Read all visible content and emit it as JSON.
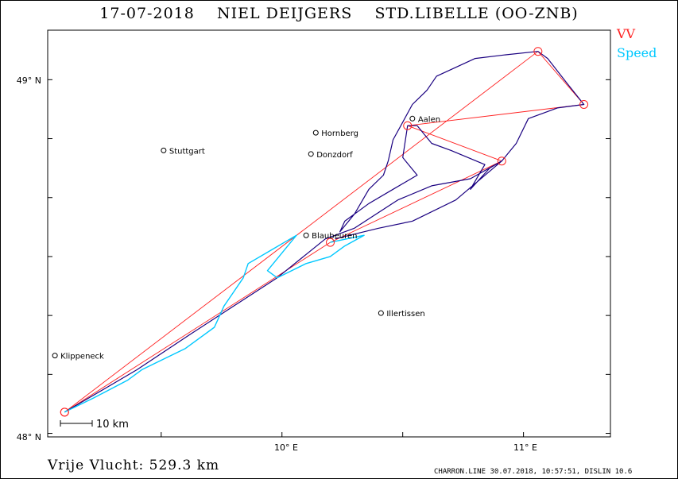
{
  "header": {
    "date": "17-07-2018",
    "pilot": "NIEL DEIJGERS",
    "glider": "STD.LIBELLE (OO-ZNB)"
  },
  "legend": {
    "vv": {
      "label": "VV",
      "color": "#ff2020"
    },
    "speed": {
      "label": "Speed",
      "color": "#00c8ff"
    }
  },
  "colors": {
    "track": "#1a0080",
    "task": "#ff2020",
    "speed": "#00c8ff"
  },
  "axes": {
    "lon_range": [
      9.03,
      11.36
    ],
    "lat_range": [
      47.99,
      49.14
    ],
    "lat_ticks": [
      {
        "value": 49.0,
        "label": "49° N"
      },
      {
        "value": 48.0,
        "label": "48° N"
      }
    ],
    "lon_ticks": [
      {
        "value": 10.0,
        "label": "10° E"
      },
      {
        "value": 11.0,
        "label": "11° E"
      }
    ]
  },
  "scale_bar": {
    "label": "10 km"
  },
  "towns": [
    {
      "name": "Stuttgart",
      "lon": 9.51,
      "lat": 48.8
    },
    {
      "name": "Hornberg",
      "lon": 10.14,
      "lat": 48.85
    },
    {
      "name": "Donzdorf",
      "lon": 10.12,
      "lat": 48.79
    },
    {
      "name": "Aalen",
      "lon": 10.54,
      "lat": 48.89
    },
    {
      "name": "Blaubeuren",
      "lon": 10.1,
      "lat": 48.56
    },
    {
      "name": "Illertissen",
      "lon": 10.41,
      "lat": 48.34
    },
    {
      "name": "Klippeneck",
      "lon": 9.06,
      "lat": 48.22
    }
  ],
  "turnpoints": [
    {
      "lon": 9.1,
      "lat": 48.06
    },
    {
      "lon": 11.06,
      "lat": 49.08
    },
    {
      "lon": 11.25,
      "lat": 48.93
    },
    {
      "lon": 10.52,
      "lat": 48.87
    },
    {
      "lon": 10.91,
      "lat": 48.77
    },
    {
      "lon": 10.2,
      "lat": 48.54
    },
    {
      "lon": 9.1,
      "lat": 48.06
    }
  ],
  "track": [
    [
      9.1,
      48.06
    ],
    [
      9.4,
      48.18
    ],
    [
      9.62,
      48.28
    ],
    [
      9.8,
      48.36
    ],
    [
      9.98,
      48.44
    ],
    [
      10.18,
      48.55
    ],
    [
      10.3,
      48.58
    ],
    [
      10.48,
      48.66
    ],
    [
      10.62,
      48.7
    ],
    [
      10.78,
      48.72
    ],
    [
      10.91,
      48.77
    ],
    [
      10.97,
      48.82
    ],
    [
      11.02,
      48.89
    ],
    [
      11.14,
      48.92
    ],
    [
      11.25,
      48.93
    ],
    [
      11.18,
      48.99
    ],
    [
      11.1,
      49.06
    ],
    [
      11.06,
      49.08
    ],
    [
      10.92,
      49.07
    ],
    [
      10.8,
      49.06
    ],
    [
      10.64,
      49.01
    ],
    [
      10.6,
      48.97
    ],
    [
      10.54,
      48.93
    ],
    [
      10.5,
      48.88
    ],
    [
      10.46,
      48.83
    ],
    [
      10.44,
      48.77
    ],
    [
      10.42,
      48.73
    ],
    [
      10.36,
      48.69
    ],
    [
      10.3,
      48.62
    ],
    [
      10.24,
      48.57
    ],
    [
      10.26,
      48.6
    ],
    [
      10.36,
      48.65
    ],
    [
      10.46,
      48.69
    ],
    [
      10.56,
      48.73
    ],
    [
      10.5,
      48.78
    ],
    [
      10.52,
      48.87
    ],
    [
      10.56,
      48.87
    ],
    [
      10.62,
      48.82
    ],
    [
      10.7,
      48.8
    ],
    [
      10.84,
      48.76
    ],
    [
      10.78,
      48.69
    ],
    [
      10.86,
      48.75
    ],
    [
      10.91,
      48.77
    ],
    [
      10.72,
      48.66
    ],
    [
      10.54,
      48.6
    ],
    [
      10.4,
      48.58
    ],
    [
      10.28,
      48.56
    ],
    [
      10.22,
      48.55
    ]
  ],
  "speed_track": [
    [
      9.1,
      48.06
    ],
    [
      9.22,
      48.1
    ],
    [
      9.36,
      48.15
    ],
    [
      9.42,
      48.18
    ],
    [
      9.48,
      48.2
    ],
    [
      9.6,
      48.24
    ],
    [
      9.72,
      48.3
    ],
    [
      9.76,
      48.36
    ],
    [
      9.8,
      48.4
    ],
    [
      9.84,
      48.44
    ],
    [
      9.86,
      48.48
    ],
    [
      9.96,
      48.52
    ],
    [
      10.06,
      48.56
    ],
    [
      9.94,
      48.46
    ],
    [
      9.98,
      48.44
    ],
    [
      10.1,
      48.48
    ],
    [
      10.2,
      48.5
    ],
    [
      10.26,
      48.53
    ],
    [
      10.34,
      48.56
    ],
    [
      10.2,
      48.54
    ]
  ],
  "footer": {
    "distance_text": "Vrije Vlucht:  529.3 km",
    "credit": "CHARRON.LINE 30.07.2018, 10:57:51, DISLIN 10.6"
  }
}
